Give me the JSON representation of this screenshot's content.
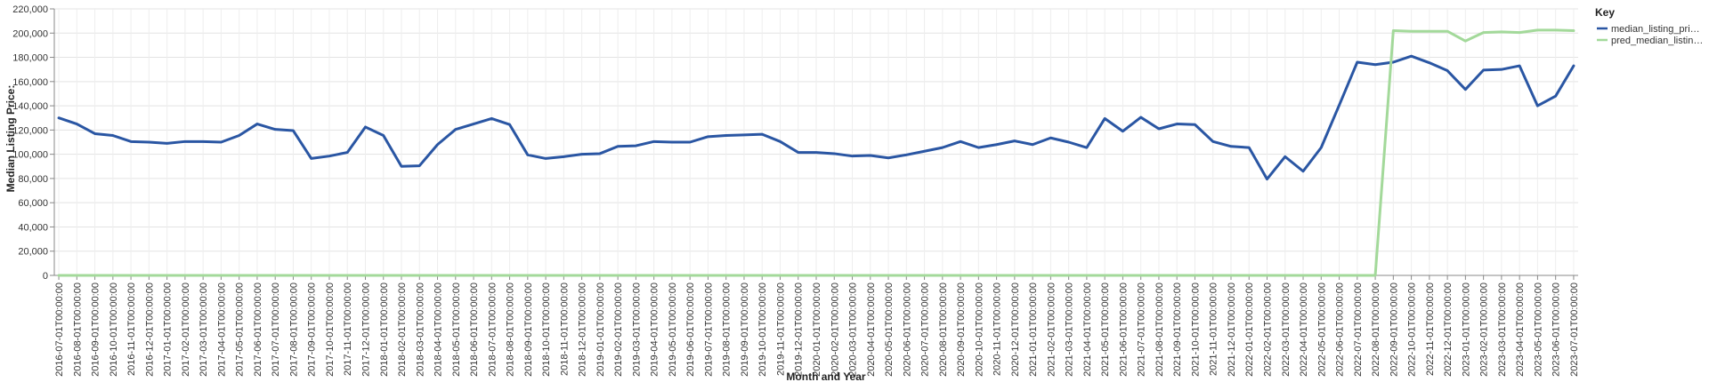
{
  "chart_data": {
    "type": "line",
    "xlabel": "Month and Year",
    "ylabel": "Median Listing Price:",
    "ylim": [
      0,
      220000
    ],
    "yticks": [
      0,
      20000,
      40000,
      60000,
      80000,
      100000,
      120000,
      140000,
      160000,
      180000,
      200000,
      220000
    ],
    "ytick_labels": [
      "0",
      "20,000",
      "40,000",
      "60,000",
      "80,000",
      "100,000",
      "120,000",
      "140,000",
      "160,000",
      "180,000",
      "200,000",
      "220,000"
    ],
    "grid": true,
    "legend": {
      "title": "Key",
      "placement": "right",
      "entries": [
        "median_listing_pri…",
        "pred_median_listin…"
      ]
    },
    "x": [
      "2016-07-01T00:00:00",
      "2016-08-01T00:00:00",
      "2016-09-01T00:00:00",
      "2016-10-01T00:00:00",
      "2016-11-01T00:00:00",
      "2016-12-01T00:00:00",
      "2017-01-01T00:00:00",
      "2017-02-01T00:00:00",
      "2017-03-01T00:00:00",
      "2017-04-01T00:00:00",
      "2017-05-01T00:00:00",
      "2017-06-01T00:00:00",
      "2017-07-01T00:00:00",
      "2017-08-01T00:00:00",
      "2017-09-01T00:00:00",
      "2017-10-01T00:00:00",
      "2017-11-01T00:00:00",
      "2017-12-01T00:00:00",
      "2018-01-01T00:00:00",
      "2018-02-01T00:00:00",
      "2018-03-01T00:00:00",
      "2018-04-01T00:00:00",
      "2018-05-01T00:00:00",
      "2018-06-01T00:00:00",
      "2018-07-01T00:00:00",
      "2018-08-01T00:00:00",
      "2018-09-01T00:00:00",
      "2018-10-01T00:00:00",
      "2018-11-01T00:00:00",
      "2018-12-01T00:00:00",
      "2019-01-01T00:00:00",
      "2019-02-01T00:00:00",
      "2019-03-01T00:00:00",
      "2019-04-01T00:00:00",
      "2019-05-01T00:00:00",
      "2019-06-01T00:00:00",
      "2019-07-01T00:00:00",
      "2019-08-01T00:00:00",
      "2019-09-01T00:00:00",
      "2019-10-01T00:00:00",
      "2019-11-01T00:00:00",
      "2019-12-01T00:00:00",
      "2020-01-01T00:00:00",
      "2020-02-01T00:00:00",
      "2020-03-01T00:00:00",
      "2020-04-01T00:00:00",
      "2020-05-01T00:00:00",
      "2020-06-01T00:00:00",
      "2020-07-01T00:00:00",
      "2020-08-01T00:00:00",
      "2020-09-01T00:00:00",
      "2020-10-01T00:00:00",
      "2020-11-01T00:00:00",
      "2020-12-01T00:00:00",
      "2021-01-01T00:00:00",
      "2021-02-01T00:00:00",
      "2021-03-01T00:00:00",
      "2021-04-01T00:00:00",
      "2021-05-01T00:00:00",
      "2021-06-01T00:00:00",
      "2021-07-01T00:00:00",
      "2021-08-01T00:00:00",
      "2021-09-01T00:00:00",
      "2021-10-01T00:00:00",
      "2021-11-01T00:00:00",
      "2021-12-01T00:00:00",
      "2022-01-01T00:00:00",
      "2022-02-01T00:00:00",
      "2022-03-01T00:00:00",
      "2022-04-01T00:00:00",
      "2022-05-01T00:00:00",
      "2022-06-01T00:00:00",
      "2022-07-01T00:00:00",
      "2022-08-01T00:00:00",
      "2022-09-01T00:00:00",
      "2022-10-01T00:00:00",
      "2022-11-01T00:00:00",
      "2022-12-01T00:00:00",
      "2023-01-01T00:00:00",
      "2023-02-01T00:00:00",
      "2023-03-01T00:00:00",
      "2023-04-01T00:00:00",
      "2023-05-01T00:00:00",
      "2023-06-01T00:00:00",
      "2023-07-01T00:00:00"
    ],
    "series": [
      {
        "name": "median_listing_pri…",
        "color": "#2a56a3",
        "values": [
          130000,
          125000,
          117000,
          115500,
          110500,
          110000,
          109000,
          110500,
          110500,
          110000,
          115500,
          125000,
          120500,
          119500,
          96500,
          98500,
          101500,
          122500,
          115500,
          90000,
          90500,
          108000,
          120500,
          125000,
          129500,
          124500,
          99500,
          96500,
          98000,
          100000,
          100500,
          106500,
          107000,
          110500,
          110000,
          110000,
          114500,
          115500,
          116000,
          116500,
          110500,
          101500,
          101500,
          100500,
          98500,
          99000,
          97000,
          99500,
          102500,
          105500,
          110500,
          105500,
          108000,
          111000,
          108000,
          113500,
          110000,
          105500,
          129500,
          119000,
          130500,
          121000,
          125000,
          124500,
          110500,
          106500,
          105500,
          79500,
          98000,
          86000,
          105500,
          140500,
          176000,
          174000,
          176000,
          181000,
          175500,
          169000,
          153500,
          169500,
          170000,
          173000,
          140000,
          148000,
          173000
        ]
      },
      {
        "name": "pred_median_listin…",
        "color": "#a3d99a",
        "values": [
          0,
          0,
          0,
          0,
          0,
          0,
          0,
          0,
          0,
          0,
          0,
          0,
          0,
          0,
          0,
          0,
          0,
          0,
          0,
          0,
          0,
          0,
          0,
          0,
          0,
          0,
          0,
          0,
          0,
          0,
          0,
          0,
          0,
          0,
          0,
          0,
          0,
          0,
          0,
          0,
          0,
          0,
          0,
          0,
          0,
          0,
          0,
          0,
          0,
          0,
          0,
          0,
          0,
          0,
          0,
          0,
          0,
          0,
          0,
          0,
          0,
          0,
          0,
          0,
          0,
          0,
          0,
          0,
          0,
          0,
          0,
          0,
          0,
          0,
          202000,
          201500,
          201500,
          201500,
          193500,
          200500,
          201000,
          200500,
          202500,
          202500,
          202000
        ]
      }
    ]
  }
}
